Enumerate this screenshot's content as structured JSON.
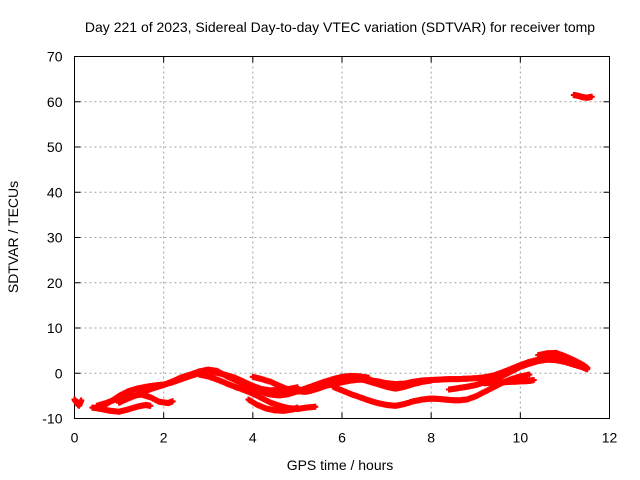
{
  "chart_data": {
    "type": "scatter",
    "title": "Day 221 of 2023, Sidereal Day-to-day VTEC variation (SDTVAR) for receiver tomp",
    "xlabel": "GPS time / hours",
    "ylabel": "SDTVAR / TECUs",
    "xlim": [
      0,
      12
    ],
    "ylim": [
      -10,
      70
    ],
    "xticks": [
      0,
      2,
      4,
      6,
      8,
      10,
      12
    ],
    "yticks": [
      -10,
      0,
      10,
      20,
      30,
      40,
      50,
      60,
      70
    ],
    "grid": true,
    "marker_color": "#ff0000",
    "series": [
      {
        "points": [
          [
            0.0,
            -5.8
          ],
          [
            0.05,
            -6.5
          ],
          [
            0.1,
            -7.2
          ],
          [
            0.15,
            -6.0
          ]
        ]
      },
      {
        "points": [
          [
            0.4,
            -7.6
          ],
          [
            0.6,
            -7.9
          ],
          [
            0.8,
            -8.3
          ],
          [
            1.0,
            -8.5
          ],
          [
            1.2,
            -8.0
          ],
          [
            1.4,
            -7.4
          ],
          [
            1.6,
            -7.0
          ],
          [
            1.7,
            -7.2
          ]
        ]
      },
      {
        "points": [
          [
            0.5,
            -7.2
          ],
          [
            0.7,
            -6.6
          ],
          [
            0.9,
            -5.9
          ],
          [
            1.1,
            -5.3
          ],
          [
            1.3,
            -5.0
          ],
          [
            1.5,
            -4.7
          ],
          [
            1.7,
            -5.3
          ],
          [
            1.9,
            -6.3
          ],
          [
            2.1,
            -6.6
          ],
          [
            2.2,
            -6.2
          ]
        ]
      },
      {
        "points": [
          [
            0.6,
            -7.5
          ],
          [
            0.8,
            -6.3
          ],
          [
            1.0,
            -5.0
          ],
          [
            1.2,
            -4.0
          ],
          [
            1.4,
            -3.4
          ],
          [
            1.6,
            -3.0
          ],
          [
            1.8,
            -2.7
          ],
          [
            2.0,
            -2.5
          ],
          [
            2.2,
            -2.0
          ],
          [
            2.4,
            -1.3
          ],
          [
            2.6,
            -0.6
          ],
          [
            2.8,
            0.0
          ],
          [
            3.0,
            0.3
          ],
          [
            3.2,
            0.1
          ],
          [
            3.4,
            -0.4
          ],
          [
            3.6,
            -1.0
          ],
          [
            3.8,
            -1.9
          ],
          [
            4.0,
            -2.8
          ],
          [
            4.2,
            -3.5
          ],
          [
            4.4,
            -3.8
          ],
          [
            4.6,
            -3.7
          ],
          [
            4.8,
            -3.5
          ],
          [
            5.0,
            -3.1
          ]
        ]
      },
      {
        "points": [
          [
            1.0,
            -6.5
          ],
          [
            1.2,
            -5.6
          ],
          [
            1.4,
            -4.8
          ],
          [
            1.6,
            -3.9
          ],
          [
            1.8,
            -3.2
          ],
          [
            2.0,
            -2.6
          ],
          [
            2.2,
            -1.8
          ],
          [
            2.4,
            -0.9
          ],
          [
            2.6,
            -0.3
          ],
          [
            2.8,
            0.4
          ],
          [
            3.0,
            0.8
          ],
          [
            3.2,
            0.5
          ],
          [
            3.4,
            -0.6
          ],
          [
            3.6,
            -1.5
          ],
          [
            3.8,
            -2.5
          ],
          [
            4.0,
            -3.4
          ],
          [
            4.2,
            -4.2
          ],
          [
            4.4,
            -4.7
          ],
          [
            4.6,
            -4.9
          ],
          [
            4.8,
            -4.6
          ],
          [
            5.0,
            -4.0
          ],
          [
            5.2,
            -3.3
          ],
          [
            5.4,
            -2.6
          ],
          [
            5.6,
            -1.9
          ],
          [
            5.8,
            -1.3
          ],
          [
            6.0,
            -0.8
          ],
          [
            6.2,
            -0.6
          ],
          [
            6.4,
            -0.7
          ],
          [
            6.6,
            -1.0
          ]
        ]
      },
      {
        "points": [
          [
            2.8,
            -0.3
          ],
          [
            3.0,
            -0.7
          ],
          [
            3.2,
            -1.4
          ],
          [
            3.4,
            -2.2
          ],
          [
            3.6,
            -3.0
          ],
          [
            3.8,
            -3.7
          ],
          [
            4.0,
            -4.5
          ],
          [
            4.2,
            -5.5
          ],
          [
            4.4,
            -6.5
          ],
          [
            4.6,
            -7.2
          ],
          [
            4.8,
            -7.7
          ],
          [
            5.0,
            -7.9
          ],
          [
            5.2,
            -7.6
          ],
          [
            5.4,
            -7.4
          ]
        ]
      },
      {
        "points": [
          [
            3.9,
            -5.8
          ],
          [
            4.1,
            -7.0
          ],
          [
            4.3,
            -7.8
          ],
          [
            4.5,
            -8.2
          ],
          [
            4.7,
            -8.3
          ],
          [
            4.9,
            -8.0
          ],
          [
            5.0,
            -7.6
          ]
        ]
      },
      {
        "points": [
          [
            4.0,
            -0.8
          ],
          [
            4.2,
            -1.3
          ],
          [
            4.4,
            -1.9
          ],
          [
            4.6,
            -2.8
          ],
          [
            4.8,
            -3.6
          ],
          [
            5.0,
            -4.0
          ],
          [
            5.2,
            -4.1
          ],
          [
            5.4,
            -3.6
          ],
          [
            5.6,
            -2.9
          ],
          [
            5.8,
            -2.4
          ],
          [
            6.0,
            -2.0
          ],
          [
            6.2,
            -1.6
          ],
          [
            6.4,
            -1.4
          ],
          [
            6.6,
            -1.5
          ],
          [
            6.8,
            -1.8
          ],
          [
            7.0,
            -2.2
          ],
          [
            7.2,
            -2.4
          ],
          [
            7.4,
            -2.3
          ],
          [
            7.6,
            -1.9
          ],
          [
            7.8,
            -1.6
          ],
          [
            8.0,
            -1.5
          ],
          [
            8.2,
            -1.4
          ],
          [
            8.4,
            -1.3
          ],
          [
            8.6,
            -1.3
          ],
          [
            8.8,
            -1.2
          ],
          [
            9.0,
            -1.1
          ],
          [
            9.2,
            -0.9
          ],
          [
            9.4,
            -0.5
          ],
          [
            9.6,
            0.2
          ],
          [
            9.8,
            1.0
          ],
          [
            10.0,
            1.8
          ],
          [
            10.2,
            2.5
          ],
          [
            10.4,
            3.0
          ],
          [
            10.6,
            3.3
          ],
          [
            10.8,
            3.5
          ],
          [
            11.0,
            3.2
          ],
          [
            11.2,
            2.6
          ],
          [
            11.4,
            1.8
          ],
          [
            11.5,
            1.2
          ]
        ]
      },
      {
        "points": [
          [
            5.8,
            -3.0
          ],
          [
            6.0,
            -3.8
          ],
          [
            6.2,
            -4.6
          ],
          [
            6.4,
            -5.3
          ],
          [
            6.6,
            -6.0
          ],
          [
            6.8,
            -6.6
          ],
          [
            7.0,
            -7.0
          ],
          [
            7.2,
            -7.2
          ],
          [
            7.4,
            -6.8
          ],
          [
            7.6,
            -6.2
          ],
          [
            7.8,
            -5.8
          ],
          [
            8.0,
            -5.6
          ],
          [
            8.2,
            -5.7
          ],
          [
            8.4,
            -5.9
          ],
          [
            8.6,
            -6.0
          ],
          [
            8.8,
            -5.8
          ],
          [
            9.0,
            -5.1
          ],
          [
            9.2,
            -4.1
          ],
          [
            9.4,
            -3.1
          ],
          [
            9.6,
            -2.1
          ],
          [
            9.8,
            -1.3
          ],
          [
            10.0,
            -0.7
          ],
          [
            10.2,
            -0.3
          ]
        ]
      },
      {
        "points": [
          [
            6.2,
            -0.8
          ],
          [
            6.4,
            -1.2
          ],
          [
            6.6,
            -1.8
          ],
          [
            6.8,
            -2.4
          ],
          [
            7.0,
            -3.0
          ],
          [
            7.2,
            -3.4
          ],
          [
            7.4,
            -3.0
          ],
          [
            7.6,
            -2.4
          ],
          [
            7.8,
            -1.9
          ],
          [
            8.0,
            -1.6
          ]
        ]
      },
      {
        "points": [
          [
            8.4,
            -3.6
          ],
          [
            8.6,
            -3.3
          ],
          [
            8.8,
            -3.0
          ],
          [
            9.0,
            -2.6
          ],
          [
            9.2,
            -2.0
          ],
          [
            9.4,
            -1.4
          ],
          [
            9.6,
            -0.6
          ],
          [
            9.8,
            0.4
          ],
          [
            10.0,
            1.4
          ],
          [
            10.2,
            2.1
          ],
          [
            10.4,
            2.7
          ],
          [
            10.6,
            3.0
          ],
          [
            10.8,
            2.9
          ],
          [
            11.0,
            2.5
          ],
          [
            11.2,
            1.9
          ],
          [
            11.4,
            1.3
          ],
          [
            11.5,
            0.9
          ]
        ]
      },
      {
        "points": [
          [
            9.2,
            -2.2
          ],
          [
            9.4,
            -2.1
          ],
          [
            9.6,
            -2.0
          ],
          [
            9.8,
            -1.9
          ],
          [
            10.0,
            -1.8
          ],
          [
            10.2,
            -1.7
          ],
          [
            10.3,
            -1.5
          ]
        ]
      },
      {
        "points": [
          [
            10.4,
            4.0
          ],
          [
            10.6,
            4.4
          ],
          [
            10.8,
            4.5
          ],
          [
            11.0,
            3.8
          ],
          [
            11.2,
            2.9
          ],
          [
            11.4,
            1.9
          ],
          [
            11.5,
            1.1
          ]
        ]
      },
      {
        "points": [
          [
            11.2,
            61.5
          ],
          [
            11.3,
            61.3
          ],
          [
            11.4,
            61.0
          ],
          [
            11.5,
            60.9
          ],
          [
            11.6,
            61.1
          ]
        ]
      }
    ]
  }
}
